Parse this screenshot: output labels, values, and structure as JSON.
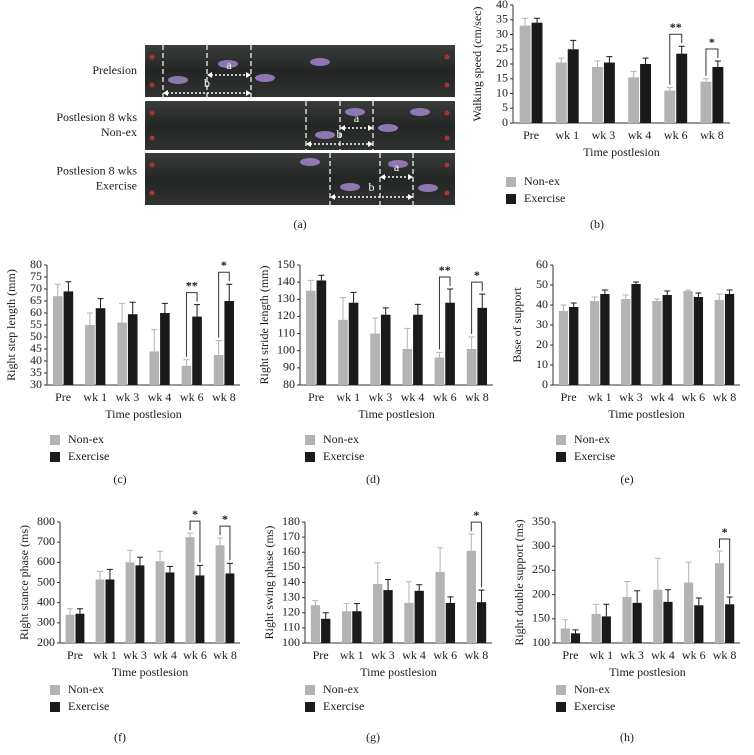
{
  "panel_a": {
    "panel": "(a)",
    "rows": [
      {
        "label": [
          "Prelesion"
        ],
        "a": "a",
        "b": "b"
      },
      {
        "label": [
          "Postlesion 8 wks",
          "Non-ex"
        ],
        "a": "a",
        "b": "b"
      },
      {
        "label": [
          "Postlesion 8 wks",
          "Exercise"
        ],
        "a": "a",
        "b": "b"
      }
    ]
  },
  "chart_data": [
    {
      "type": "bar",
      "panel": "(b)",
      "ylabel": "Walking speed (cm/sec)",
      "xlabel": "Time postlesion",
      "categories": [
        "Pre",
        "wk 1",
        "wk 3",
        "wk 4",
        "wk 6",
        "wk 8"
      ],
      "series": [
        {
          "name": "Non-ex",
          "color": "#b3b3b3",
          "values": [
            33,
            20.5,
            19,
            15.5,
            11,
            14
          ],
          "errors": [
            2.5,
            1.5,
            2,
            2,
            1,
            1
          ]
        },
        {
          "name": "Exercise",
          "color": "#1a1a1a",
          "values": [
            34,
            25,
            20.5,
            20,
            23.5,
            19
          ],
          "errors": [
            1.5,
            3,
            2,
            2,
            2.5,
            2
          ]
        }
      ],
      "ylim": [
        0,
        40
      ],
      "yticks": [
        0,
        5,
        10,
        15,
        20,
        25,
        30,
        35,
        40
      ],
      "annotations": [
        {
          "text": "**",
          "category": "wk 6"
        },
        {
          "text": "*",
          "category": "wk 8"
        }
      ]
    },
    {
      "type": "bar",
      "panel": "(c)",
      "ylabel": "Right step length (mm)",
      "xlabel": "Time postlesion",
      "categories": [
        "Pre",
        "wk 1",
        "wk 3",
        "wk 4",
        "wk 6",
        "wk 8"
      ],
      "series": [
        {
          "name": "Non-ex",
          "color": "#b3b3b3",
          "values": [
            67,
            55,
            56,
            44,
            38,
            42.5
          ],
          "errors": [
            5,
            5,
            8,
            9,
            2.5,
            6
          ]
        },
        {
          "name": "Exercise",
          "color": "#1a1a1a",
          "values": [
            69,
            62,
            59.5,
            60,
            58.5,
            65
          ],
          "errors": [
            4,
            4,
            5,
            4,
            5,
            7
          ]
        }
      ],
      "ylim": [
        30,
        80
      ],
      "yticks": [
        30,
        35,
        40,
        45,
        50,
        55,
        60,
        65,
        70,
        75,
        80
      ],
      "annotations": [
        {
          "text": "**",
          "category": "wk 6"
        },
        {
          "text": "*",
          "category": "wk 8"
        }
      ]
    },
    {
      "type": "bar",
      "panel": "(d)",
      "ylabel": "Right stride length (mm)",
      "xlabel": "Time postlesion",
      "categories": [
        "Pre",
        "wk 1",
        "wk 3",
        "wk 4",
        "wk 6",
        "wk 8"
      ],
      "series": [
        {
          "name": "Non-ex",
          "color": "#b3b3b3",
          "values": [
            135,
            118,
            110,
            101,
            96,
            101
          ],
          "errors": [
            6,
            13,
            9,
            12,
            3,
            7
          ]
        },
        {
          "name": "Exercise",
          "color": "#1a1a1a",
          "values": [
            141,
            128,
            121,
            121,
            128,
            125
          ],
          "errors": [
            3,
            6,
            4,
            6,
            8,
            8
          ]
        }
      ],
      "ylim": [
        80,
        150
      ],
      "yticks": [
        80,
        90,
        100,
        110,
        120,
        130,
        140,
        150
      ],
      "annotations": [
        {
          "text": "**",
          "category": "wk 6"
        },
        {
          "text": "*",
          "category": "wk 8"
        }
      ]
    },
    {
      "type": "bar",
      "panel": "(e)",
      "ylabel": "Base of support",
      "xlabel": "Time postlesion",
      "categories": [
        "Pre",
        "wk 1",
        "wk 3",
        "wk 4",
        "wk 6",
        "wk 8"
      ],
      "series": [
        {
          "name": "Non-ex",
          "color": "#b3b3b3",
          "values": [
            37,
            42,
            43,
            42,
            47,
            42.5
          ],
          "errors": [
            3,
            2,
            2,
            1,
            0.5,
            3
          ]
        },
        {
          "name": "Exercise",
          "color": "#1a1a1a",
          "values": [
            39,
            45.5,
            50.5,
            45,
            44,
            45.5
          ],
          "errors": [
            2,
            2,
            1,
            2,
            2,
            2
          ]
        }
      ],
      "ylim": [
        0,
        60
      ],
      "yticks": [
        0,
        10,
        20,
        30,
        40,
        50,
        60
      ],
      "annotations": []
    },
    {
      "type": "bar",
      "panel": "(f)",
      "ylabel": "Right stance phase (ms)",
      "xlabel": "Time postlesion",
      "categories": [
        "Pre",
        "wk 1",
        "wk 3",
        "wk 4",
        "wk 6",
        "wk 8"
      ],
      "series": [
        {
          "name": "Non-ex",
          "color": "#b3b3b3",
          "values": [
            340,
            515,
            600,
            605,
            725,
            685
          ],
          "errors": [
            30,
            40,
            60,
            50,
            20,
            35
          ]
        },
        {
          "name": "Exercise",
          "color": "#1a1a1a",
          "values": [
            345,
            515,
            585,
            550,
            535,
            545
          ],
          "errors": [
            25,
            50,
            40,
            30,
            50,
            50
          ]
        }
      ],
      "ylim": [
        200,
        800
      ],
      "yticks": [
        200,
        300,
        400,
        500,
        600,
        700,
        800
      ],
      "annotations": [
        {
          "text": "*",
          "category": "wk 6"
        },
        {
          "text": "*",
          "category": "wk 8"
        }
      ]
    },
    {
      "type": "bar",
      "panel": "(g)",
      "ylabel": "Right swing phase (ms)",
      "xlabel": "Time postlesion",
      "categories": [
        "Pre",
        "wk 1",
        "wk 3",
        "wk 4",
        "wk 6",
        "wk 8"
      ],
      "series": [
        {
          "name": "Non-ex",
          "color": "#b3b3b3",
          "values": [
            125,
            121,
            139,
            126.5,
            147,
            161
          ],
          "errors": [
            3,
            5,
            14,
            14,
            16,
            11
          ]
        },
        {
          "name": "Exercise",
          "color": "#1a1a1a",
          "values": [
            116,
            121,
            135,
            134.5,
            126.5,
            127
          ],
          "errors": [
            4,
            5,
            7,
            4,
            4,
            8
          ]
        }
      ],
      "ylim": [
        100,
        180
      ],
      "yticks": [
        100,
        110,
        120,
        130,
        140,
        150,
        160,
        170,
        180
      ],
      "annotations": [
        {
          "text": "*",
          "category": "wk 8"
        }
      ]
    },
    {
      "type": "bar",
      "panel": "(h)",
      "ylabel": "Right double support (ms)",
      "xlabel": "Time postlesion",
      "categories": [
        "Pre",
        "wk 1",
        "wk 3",
        "wk 4",
        "wk 6",
        "wk 8"
      ],
      "series": [
        {
          "name": "Non-ex",
          "color": "#b3b3b3",
          "values": [
            130,
            160,
            195,
            210,
            225,
            265
          ],
          "errors": [
            18,
            20,
            32,
            65,
            42,
            25
          ]
        },
        {
          "name": "Exercise",
          "color": "#1a1a1a",
          "values": [
            120,
            155,
            183,
            185,
            178,
            180
          ],
          "errors": [
            7,
            25,
            25,
            25,
            15,
            15
          ]
        }
      ],
      "ylim": [
        100,
        350
      ],
      "yticks": [
        100,
        150,
        200,
        250,
        300,
        350
      ],
      "annotations": [
        {
          "text": "*",
          "category": "wk 8"
        }
      ]
    }
  ]
}
